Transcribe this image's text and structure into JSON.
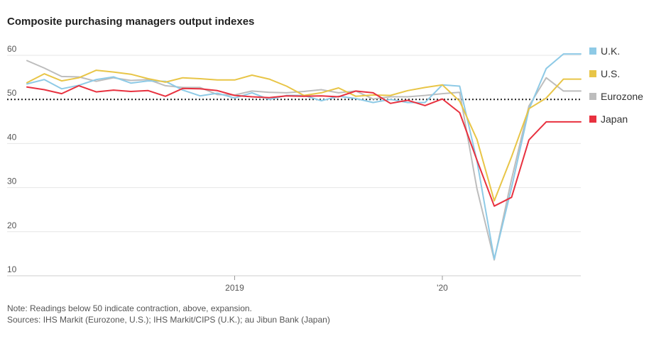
{
  "title": "Composite purchasing managers output indexes",
  "legend": [
    {
      "label": "U.K.",
      "color": "#8ecae6"
    },
    {
      "label": "U.S.",
      "color": "#e8c547"
    },
    {
      "label": "Eurozone",
      "color": "#bdbdbd"
    },
    {
      "label": "Japan",
      "color": "#e8313f"
    }
  ],
  "footer": {
    "note": "Note: Readings below 50 indicate contraction, above, expansion.",
    "sources": "Sources: IHS Markit (Eurozone, U.S.); IHS Markit/CIPS (U.K.); au Jibun Bank (Japan)"
  },
  "chart_data": {
    "type": "line",
    "title": "Composite purchasing managers output indexes",
    "xlabel": "",
    "ylabel": "",
    "ylim": [
      10,
      60
    ],
    "yticks": [
      10,
      20,
      30,
      40,
      50,
      60
    ],
    "reference_line": 50,
    "x_tick_labels": [
      {
        "label": "2019",
        "index": 12
      },
      {
        "label": "'20",
        "index": 24
      }
    ],
    "x": [
      "Jan 2018",
      "Feb 2018",
      "Mar 2018",
      "Apr 2018",
      "May 2018",
      "Jun 2018",
      "Jul 2018",
      "Aug 2018",
      "Sep 2018",
      "Oct 2018",
      "Nov 2018",
      "Dec 2018",
      "Jan 2019",
      "Feb 2019",
      "Mar 2019",
      "Apr 2019",
      "May 2019",
      "Jun 2019",
      "Jul 2019",
      "Aug 2019",
      "Sep 2019",
      "Oct 2019",
      "Nov 2019",
      "Dec 2019",
      "Jan 2020",
      "Feb 2020",
      "Mar 2020",
      "Apr 2020",
      "May 2020",
      "Jun 2020",
      "Jul 2020",
      "Aug 2020",
      "Sep 2020"
    ],
    "series": [
      {
        "name": "Eurozone",
        "color": "#bdbdbd",
        "values": [
          58.8,
          57.1,
          55.2,
          55.1,
          54.1,
          54.9,
          54.3,
          54.5,
          53.1,
          52.7,
          52.7,
          51.1,
          51.0,
          51.9,
          51.6,
          51.5,
          51.8,
          52.2,
          51.5,
          51.9,
          50.1,
          50.6,
          50.6,
          50.9,
          51.3,
          51.6,
          29.7,
          13.6,
          31.9,
          48.5,
          54.9,
          51.9,
          51.9
        ]
      },
      {
        "name": "U.K.",
        "color": "#8ecae6",
        "values": [
          53.5,
          54.5,
          52.4,
          53.2,
          54.5,
          55.1,
          53.7,
          54.2,
          54.1,
          52.1,
          50.8,
          51.4,
          50.3,
          51.5,
          50.0,
          50.9,
          50.9,
          49.7,
          50.7,
          50.2,
          49.3,
          50.0,
          49.3,
          49.3,
          53.3,
          53.0,
          36.0,
          13.8,
          30.0,
          47.7,
          57.0,
          60.3,
          60.3
        ]
      },
      {
        "name": "U.S.",
        "color": "#e8c547",
        "values": [
          53.8,
          55.8,
          54.2,
          54.9,
          56.6,
          56.2,
          55.7,
          54.7,
          53.9,
          54.9,
          54.7,
          54.4,
          54.4,
          55.5,
          54.6,
          53.0,
          50.9,
          51.5,
          52.6,
          50.7,
          51.0,
          50.9,
          52.0,
          52.7,
          53.3,
          49.6,
          40.9,
          27.0,
          37.0,
          47.9,
          50.3,
          54.6,
          54.6
        ]
      },
      {
        "name": "Japan",
        "color": "#e8313f",
        "values": [
          52.8,
          52.2,
          51.3,
          53.1,
          51.7,
          52.1,
          51.8,
          52.0,
          50.7,
          52.5,
          52.4,
          52.0,
          50.9,
          50.6,
          50.4,
          50.8,
          50.7,
          50.8,
          50.6,
          51.9,
          51.5,
          49.1,
          49.8,
          48.6,
          50.1,
          47.0,
          36.2,
          25.8,
          27.8,
          40.8,
          44.9,
          44.9,
          44.9
        ]
      }
    ]
  }
}
